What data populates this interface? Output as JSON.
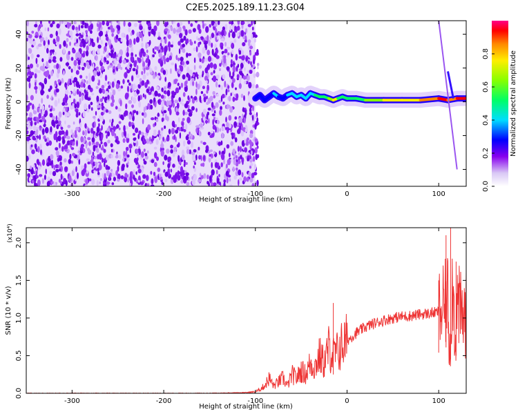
{
  "title": "C2E5.2025.189.11.23.G04",
  "colors": {
    "spectro_bg": "#ffffff",
    "snr_line": "#ee3333",
    "axis": "#000000"
  },
  "chart_data": [
    {
      "type": "heatmap",
      "xlabel": "Height of straight line (km)",
      "ylabel": "Frequency (Hz)",
      "xlim": [
        -350,
        130
      ],
      "ylim": [
        -50,
        48
      ],
      "x_ticks": [
        "-300",
        "-200",
        "-100",
        "0",
        "100"
      ],
      "y_ticks": [
        "-40",
        "-20",
        "0",
        "20",
        "40"
      ],
      "colorbar": {
        "label": "Normalized spectral amplitude",
        "range": [
          0,
          1
        ],
        "ticks": [
          "0.0",
          "0.2",
          "0.4",
          "0.6",
          "0.8"
        ]
      },
      "noise_region_x": [
        -350,
        -100
      ],
      "signal_track": {
        "x": [
          -100,
          -95,
          -90,
          -85,
          -80,
          -75,
          -70,
          -65,
          -60,
          -55,
          -50,
          -45,
          -40,
          -35,
          -30,
          -25,
          -20,
          -15,
          -10,
          -5,
          0,
          10,
          20,
          40,
          60,
          80,
          100,
          110,
          120,
          130
        ],
        "y": [
          2,
          4,
          1,
          3,
          5,
          3,
          2,
          4,
          5,
          3,
          4,
          2,
          5,
          4,
          3,
          3,
          2,
          1,
          2,
          3,
          2,
          2,
          1,
          1,
          1,
          1,
          2,
          1,
          2,
          2
        ],
        "amplitude": [
          0.3,
          0.4,
          0.35,
          0.4,
          0.45,
          0.4,
          0.4,
          0.45,
          0.5,
          0.45,
          0.5,
          0.5,
          0.5,
          0.55,
          0.6,
          0.6,
          0.7,
          0.85,
          0.6,
          0.6,
          0.6,
          0.65,
          0.7,
          0.8,
          0.85,
          0.9,
          0.95,
          0.9,
          0.95,
          0.95
        ]
      },
      "branch_lines": [
        {
          "x": [
            100,
            120
          ],
          "y": [
            48,
            -40
          ]
        },
        {
          "x": [
            110,
            116
          ],
          "y": [
            18,
            2
          ]
        }
      ]
    },
    {
      "type": "line",
      "xlabel": "Height of straight line (km)",
      "ylabel": "SNR (10 * v/v)",
      "y_scale_label": "(x10⁴)",
      "xlim": [
        -350,
        130
      ],
      "ylim": [
        0,
        2.2
      ],
      "x_ticks": [
        "-300",
        "-200",
        "-100",
        "0",
        "100"
      ],
      "y_ticks": [
        "0.0",
        "0.5",
        "1.0",
        "1.5",
        "2.0"
      ],
      "series": [
        {
          "x": [
            -350,
            -300,
            -250,
            -200,
            -150,
            -110,
            -100,
            -95,
            -90,
            -85,
            -80,
            -75,
            -70,
            -65,
            -60,
            -55,
            -50,
            -45,
            -40,
            -35,
            -30,
            -25,
            -20,
            -15,
            -10,
            -5,
            0,
            10,
            20,
            30,
            40,
            50,
            60,
            70,
            80,
            90,
            100,
            105,
            110,
            112,
            115,
            118,
            120,
            125,
            130
          ],
          "y": [
            0.0,
            0.0,
            0.0,
            0.0,
            0.0,
            0.01,
            0.02,
            0.05,
            0.1,
            0.2,
            0.1,
            0.15,
            0.2,
            0.1,
            0.25,
            0.2,
            0.3,
            0.25,
            0.4,
            0.35,
            0.5,
            0.4,
            0.6,
            0.5,
            0.55,
            0.65,
            0.7,
            0.8,
            0.88,
            0.93,
            0.97,
            1.0,
            1.02,
            1.03,
            1.05,
            1.06,
            1.08,
            1.1,
            1.3,
            0.6,
            1.5,
            0.8,
            1.2,
            1.0,
            1.05
          ],
          "spikes": [
            {
              "x": -15,
              "y": 1.2
            },
            {
              "x": 100,
              "y": 1.5
            },
            {
              "x": 108,
              "y": 2.1
            },
            {
              "x": 113,
              "y": 2.2
            },
            {
              "x": 119,
              "y": 1.75
            }
          ]
        }
      ]
    }
  ]
}
